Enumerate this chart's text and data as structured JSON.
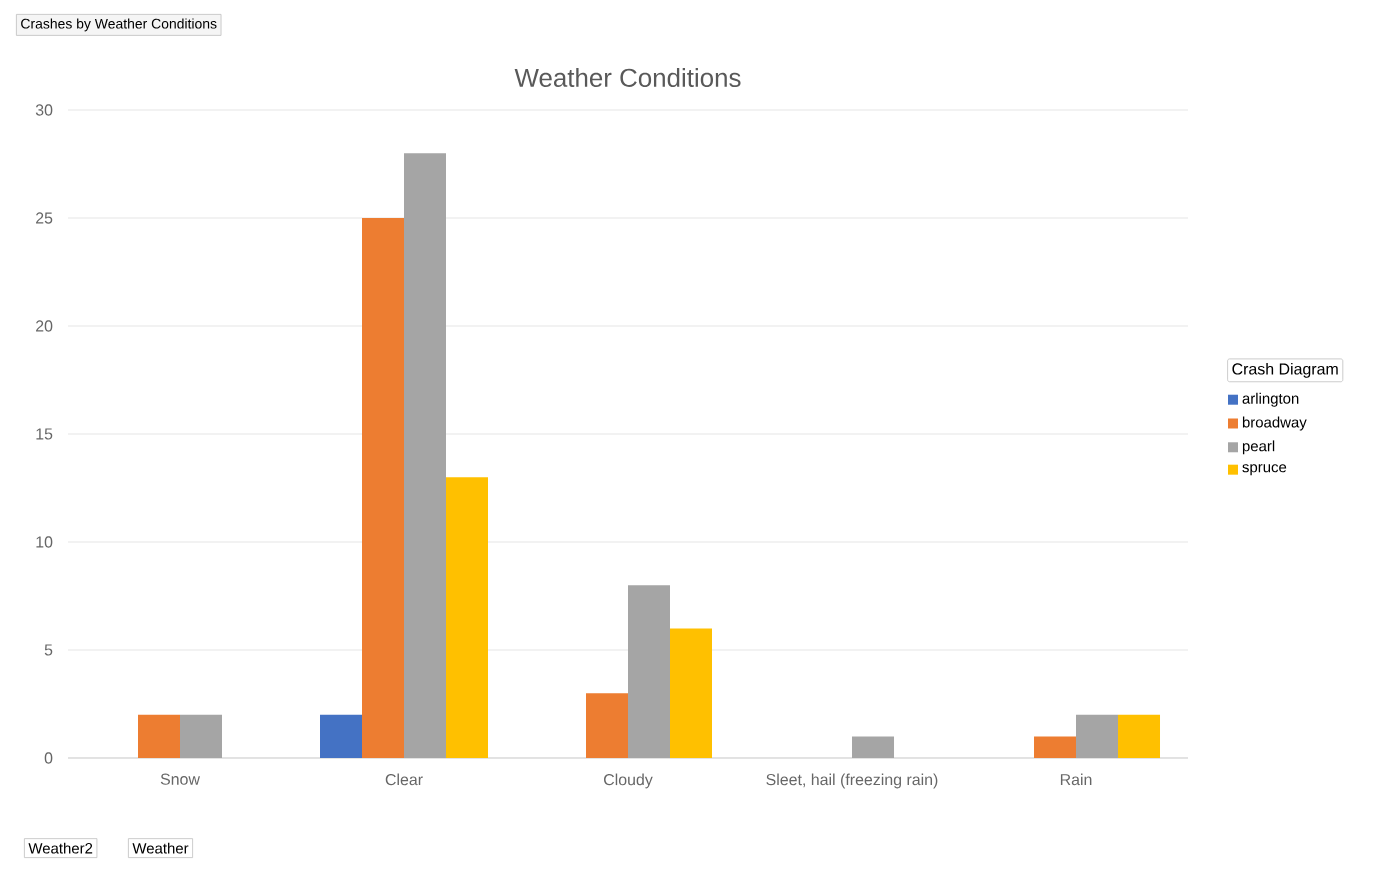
{
  "chart_data": {
    "type": "bar",
    "title": "Weather Conditions",
    "categories": [
      "Snow",
      "Clear",
      "Cloudy",
      "Sleet, hail (freezing rain)",
      "Rain"
    ],
    "series": [
      {
        "name": "arlington",
        "color": "#4472c4",
        "values": [
          null,
          2,
          null,
          null,
          null
        ]
      },
      {
        "name": "broadway",
        "color": "#ed7d31",
        "values": [
          2,
          25,
          3,
          null,
          1
        ]
      },
      {
        "name": "pearl",
        "color": "#a5a5a5",
        "values": [
          2,
          28,
          8,
          1,
          2
        ]
      },
      {
        "name": "spruce",
        "color": "#ffc000",
        "values": [
          null,
          13,
          6,
          null,
          2
        ]
      }
    ],
    "ylim": [
      0,
      30
    ],
    "yticks": [
      0,
      5,
      10,
      15,
      20,
      25,
      30
    ],
    "grid": "y",
    "legend": "right",
    "legend_title": "Crash Diagram",
    "annotations": [
      "Crashes by Weather Conditions",
      "Weather2",
      "Weather"
    ]
  }
}
